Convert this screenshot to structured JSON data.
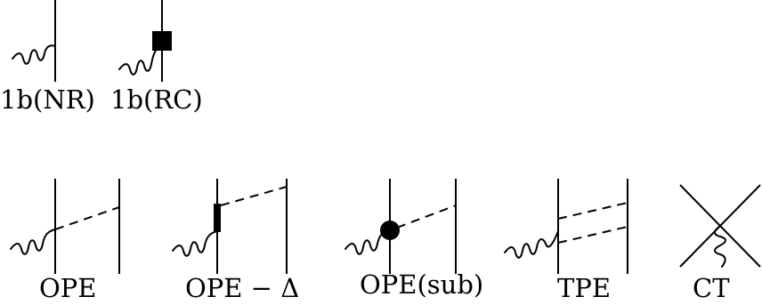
{
  "diagrams": [
    {
      "id": "1b-nr",
      "label": "1b(NR)"
    },
    {
      "id": "1b-rc",
      "label": "1b(RC)"
    },
    {
      "id": "ope",
      "label": "OPE"
    },
    {
      "id": "ope-delta",
      "label": "OPE − Δ"
    },
    {
      "id": "ope-sub",
      "label": "OPE(sub)"
    },
    {
      "id": "tpe",
      "label": "TPE"
    },
    {
      "id": "ct",
      "label": "CT"
    }
  ]
}
